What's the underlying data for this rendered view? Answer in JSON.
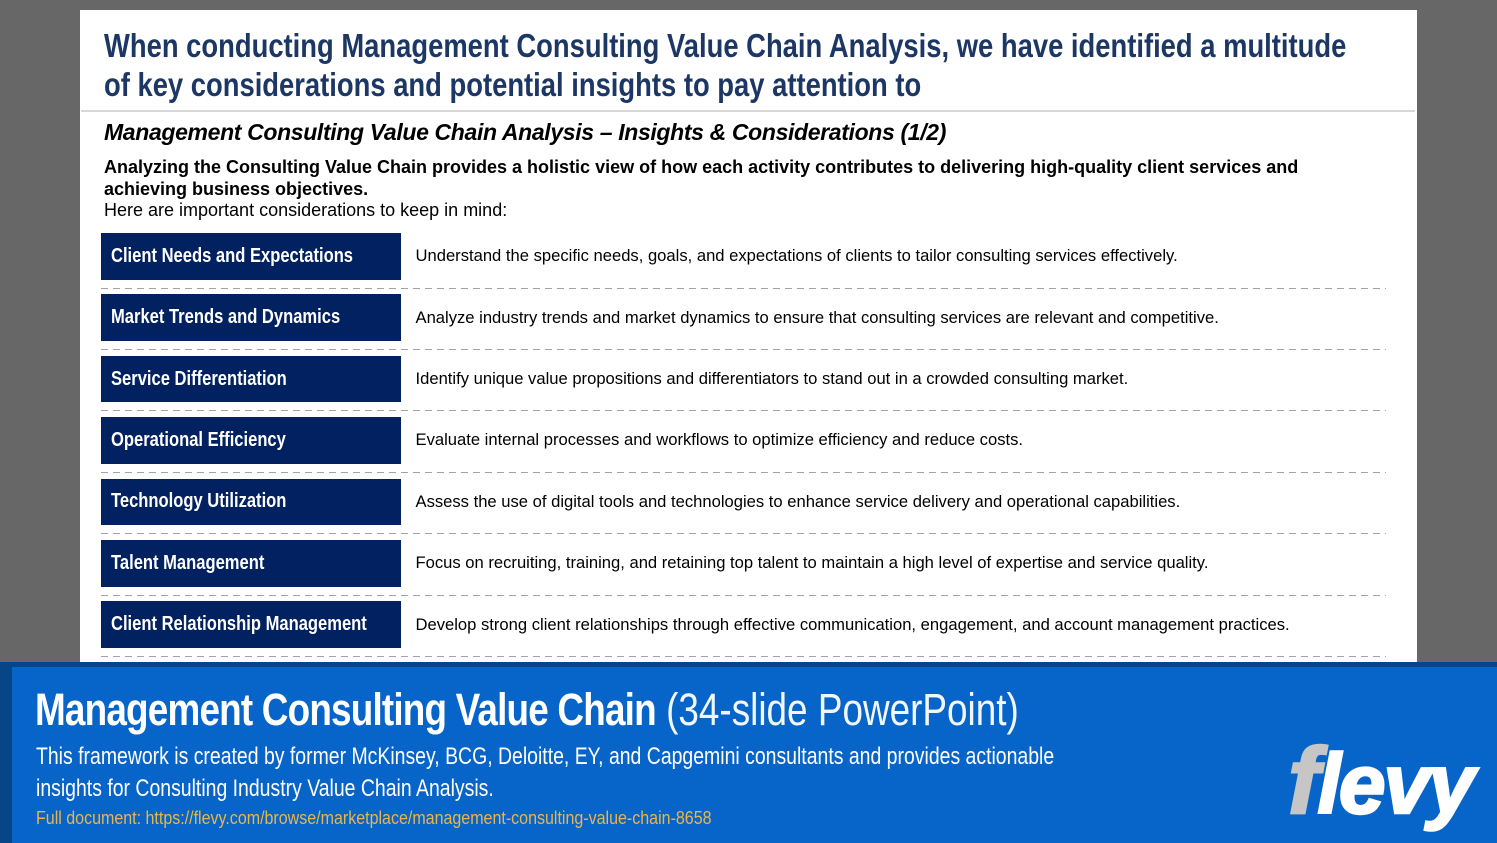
{
  "slide": {
    "title": "When conducting Management Consulting Value Chain Analysis, we have identified a multitude of key considerations and potential insights to pay attention to",
    "subtitle": "Management Consulting Value Chain Analysis – Insights & Considerations (1/2)",
    "intro_bold": "Analyzing the Consulting Value Chain provides a holistic view of how each activity contributes to delivering high-quality client services and achieving business objectives.",
    "intro_note": "Here are important considerations to keep in mind:",
    "considerations": [
      {
        "label": "Client Needs and Expectations",
        "description": "Understand the specific needs, goals, and expectations of clients to tailor consulting services effectively."
      },
      {
        "label": "Market Trends and Dynamics",
        "description": "Analyze industry trends and market dynamics to ensure that consulting services are relevant and competitive."
      },
      {
        "label": "Service Differentiation",
        "description": "Identify unique value propositions and differentiators to stand out in a crowded consulting market."
      },
      {
        "label": "Operational Efficiency",
        "description": "Evaluate internal processes and workflows to optimize efficiency and reduce costs."
      },
      {
        "label": "Technology Utilization",
        "description": "Assess the use of digital tools and technologies to enhance service delivery and operational capabilities."
      },
      {
        "label": "Talent Management",
        "description": "Focus on recruiting, training, and retaining top talent to maintain a high level of expertise and service quality."
      },
      {
        "label": "Client Relationship Management",
        "description": "Develop strong client relationships through effective communication, engagement, and account management practices."
      }
    ]
  },
  "banner": {
    "title_bold": "Management Consulting Value Chain",
    "title_light": " (34-slide PowerPoint)",
    "description": "This framework is created by former McKinsey, BCG, Deloitte, EY, and Capgemini consultants and provides actionable insights for Consulting Industry Value Chain Analysis.",
    "link_text": "Full document: https://flevy.com/browse/marketplace/management-consulting-value-chain-8658",
    "logo_f": "f",
    "logo_rest": "levy"
  },
  "colors": {
    "background_gray": "#676767",
    "slide_white": "#ffffff",
    "title_navy": "#1d3765",
    "row_box_navy": "#012160",
    "banner_blue": "#0764c9",
    "banner_edge_blue": "#064586",
    "link_gold": "#e9b54d",
    "logo_f_gray": "#c6c6c6"
  }
}
